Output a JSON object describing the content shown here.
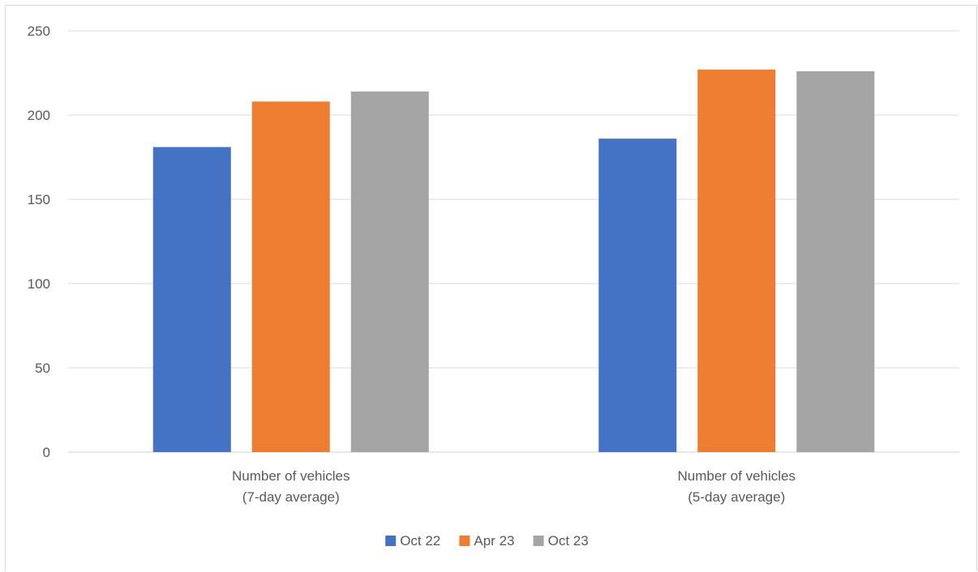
{
  "chart_data": {
    "type": "bar",
    "categories": [
      [
        "Number of vehicles",
        "(7-day average)"
      ],
      [
        "Number of vehicles",
        "(5-day average)"
      ]
    ],
    "series": [
      {
        "name": "Oct 22",
        "values": [
          181,
          186
        ],
        "color": "#4472c4"
      },
      {
        "name": "Apr 23",
        "values": [
          208,
          227
        ],
        "color": "#ed7d31"
      },
      {
        "name": "Oct 23",
        "values": [
          214,
          226
        ],
        "color": "#a5a5a5"
      }
    ],
    "ylim": [
      0,
      250
    ],
    "yticks": [
      0,
      50,
      100,
      150,
      200,
      250
    ],
    "grid": true,
    "legend": "bottom"
  }
}
